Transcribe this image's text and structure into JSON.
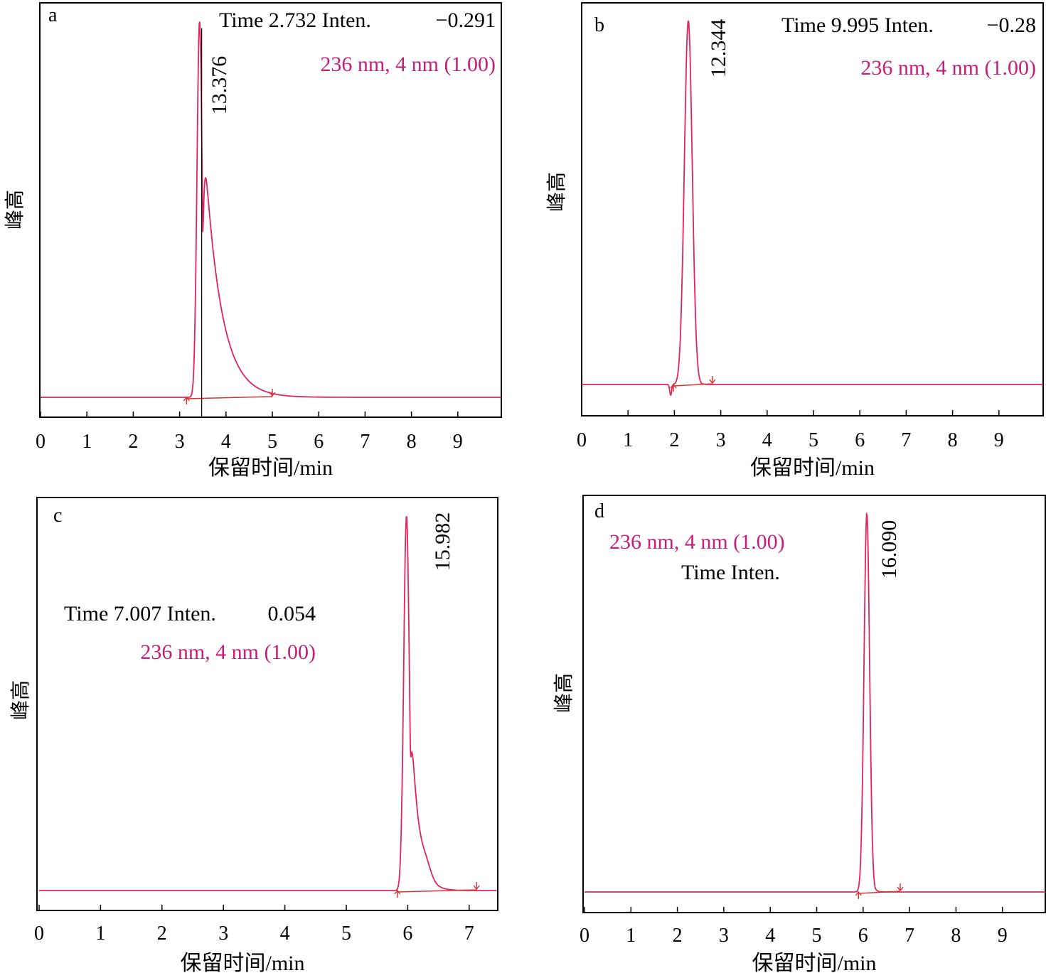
{
  "colors": {
    "trace": "#e0245e",
    "accent_text": "#c2207a",
    "frame": "#000000",
    "baseline": "#d93030"
  },
  "chart_data": [
    {
      "panel": "a",
      "type": "line",
      "xlabel": "保留时间/min",
      "ylabel": "峰高",
      "xticks": [
        "0",
        "1",
        "2",
        "3",
        "4",
        "5",
        "6",
        "7",
        "8",
        "9"
      ],
      "xlim": [
        0,
        10
      ],
      "info_lines": [
        "Time 2.732 Inten.",
        "−0.291"
      ],
      "wavelength_label": "236 nm, 4 nm (1.00)",
      "peak": {
        "rt": 3.43,
        "label": "13.376",
        "start": 3.15,
        "end": 5.0,
        "sigma": 0.055,
        "tail": 0.35,
        "height": 1.0
      },
      "baseline_level": 0.0,
      "marker_line_x": 3.43
    },
    {
      "panel": "b",
      "type": "line",
      "xlabel": "保留时间/min",
      "ylabel": "峰高",
      "xticks": [
        "0",
        "1",
        "2",
        "3",
        "4",
        "5",
        "6",
        "7",
        "8",
        "9"
      ],
      "xlim": [
        0,
        10
      ],
      "info_lines": [
        "Time 9.995  Inten.",
        "−0.28"
      ],
      "wavelength_label": "236 nm, 4 nm (1.00)",
      "peak": {
        "rt": 2.3,
        "label": "12.344",
        "start": 1.98,
        "end": 2.82,
        "sigma": 0.085,
        "tail": 0.05,
        "height": 1.0
      },
      "baseline_level": 0.0,
      "dip": {
        "x": 1.92,
        "depth": 0.03
      }
    },
    {
      "panel": "c",
      "type": "line",
      "xlabel": "保留时间/min",
      "ylabel": "峰高",
      "xticks": [
        "0",
        "1",
        "2",
        "3",
        "4",
        "5",
        "6",
        "7"
      ],
      "xlim": [
        0,
        7.45
      ],
      "info_lines": [
        "Time  7.007 Inten.",
        "0.054"
      ],
      "wavelength_label": "236 nm, 4 nm (1.00)",
      "peak": {
        "rt": 5.98,
        "label": "15.982",
        "start": 5.83,
        "end": 7.12,
        "sigma": 0.045,
        "tail": 0.12,
        "height": 1.0
      },
      "baseline_level": 0.0,
      "shoulder": {
        "x": 6.3,
        "height": 0.03
      }
    },
    {
      "panel": "d",
      "type": "line",
      "xlabel": "保留时间/min",
      "ylabel": "峰高",
      "xticks": [
        "0",
        "1",
        "2",
        "3",
        "4",
        "5",
        "6",
        "7",
        "8",
        "9"
      ],
      "xlim": [
        0,
        10
      ],
      "info_lines": [
        "Time    Inten."
      ],
      "wavelength_label": "236 nm, 4 nm (1.00)",
      "peak": {
        "rt": 6.08,
        "label": "16.090",
        "start": 5.9,
        "end": 6.8,
        "sigma": 0.06,
        "tail": 0.04,
        "height": 1.0
      },
      "baseline_level": 0.0
    }
  ]
}
